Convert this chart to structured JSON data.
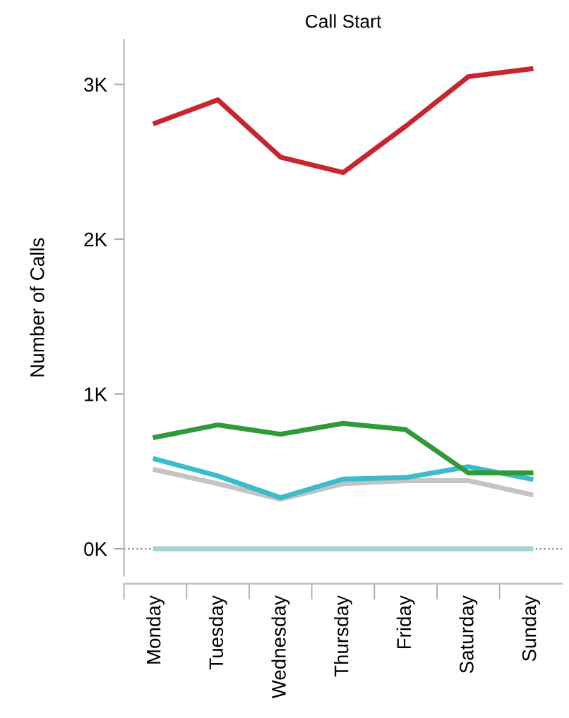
{
  "chart_data": {
    "type": "line",
    "title": "Call Start",
    "ylabel": "Number of Calls",
    "categories": [
      "Monday",
      "Tuesday",
      "Wednesday",
      "Thursday",
      "Friday",
      "Saturday",
      "Sunday"
    ],
    "series": [
      {
        "color": "#c8262f",
        "values": [
          2750,
          2900,
          2530,
          2430,
          2730,
          3050,
          3100
        ]
      },
      {
        "color": "#2f9a3a",
        "values": [
          720,
          800,
          740,
          810,
          770,
          490,
          490
        ]
      },
      {
        "color": "#3bbccc",
        "values": [
          580,
          470,
          330,
          450,
          460,
          530,
          450
        ]
      },
      {
        "color": "#c4c4c4",
        "values": [
          510,
          420,
          320,
          420,
          440,
          440,
          350
        ]
      },
      {
        "color": "#9fd6d4",
        "values": [
          0,
          0,
          0,
          0,
          0,
          0,
          0
        ]
      }
    ],
    "ylim": [
      -175,
      3290
    ],
    "yticks": [
      {
        "value": 0,
        "label": "0K"
      },
      {
        "value": 1000,
        "label": "1K"
      },
      {
        "value": 2000,
        "label": "2K"
      },
      {
        "value": 3000,
        "label": "3K"
      }
    ],
    "ref_lines": [
      {
        "axis": "y",
        "value": 0,
        "color": "#808080",
        "line_style": "dotted"
      }
    ],
    "grid": false,
    "legend": false,
    "marker": "none",
    "line_style": "solid"
  }
}
